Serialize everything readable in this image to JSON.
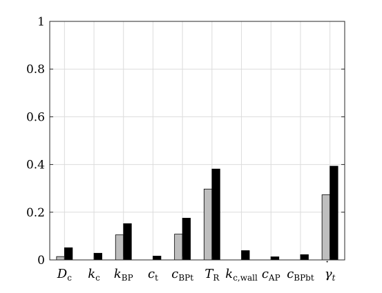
{
  "chart_data": {
    "type": "bar",
    "title": "",
    "xlabel": "",
    "ylabel": "",
    "ylim": [
      0,
      1
    ],
    "yticks": [
      "0",
      "0.2",
      "0.4",
      "0.6",
      "0.8",
      "1"
    ],
    "grid": true,
    "legend": "none",
    "categories": [
      {
        "main": "D",
        "sub": "c",
        "accent": ""
      },
      {
        "main": "k",
        "sub": "c",
        "accent": ""
      },
      {
        "main": "k",
        "sub": "BP",
        "accent": ""
      },
      {
        "main": "c",
        "sub": "t",
        "accent": ""
      },
      {
        "main": "c",
        "sub": "BPt",
        "accent": ""
      },
      {
        "main": "T",
        "sub": "R",
        "accent": ""
      },
      {
        "main": "k",
        "sub": "c,wall",
        "accent": ""
      },
      {
        "main": "c",
        "sub": "AP",
        "accent": ""
      },
      {
        "main": "c",
        "sub": "BPbt",
        "accent": ""
      },
      {
        "main": "γ",
        "sub": "t",
        "accent": "˙"
      }
    ],
    "series": [
      {
        "color": "#bebebe",
        "values": [
          0.014,
          0.0,
          0.105,
          0.0,
          0.108,
          0.297,
          0.0,
          0.0,
          0.0,
          0.273
        ]
      },
      {
        "color": "#000000",
        "values": [
          0.051,
          0.028,
          0.152,
          0.016,
          0.175,
          0.381,
          0.039,
          0.013,
          0.022,
          0.393
        ]
      }
    ]
  }
}
